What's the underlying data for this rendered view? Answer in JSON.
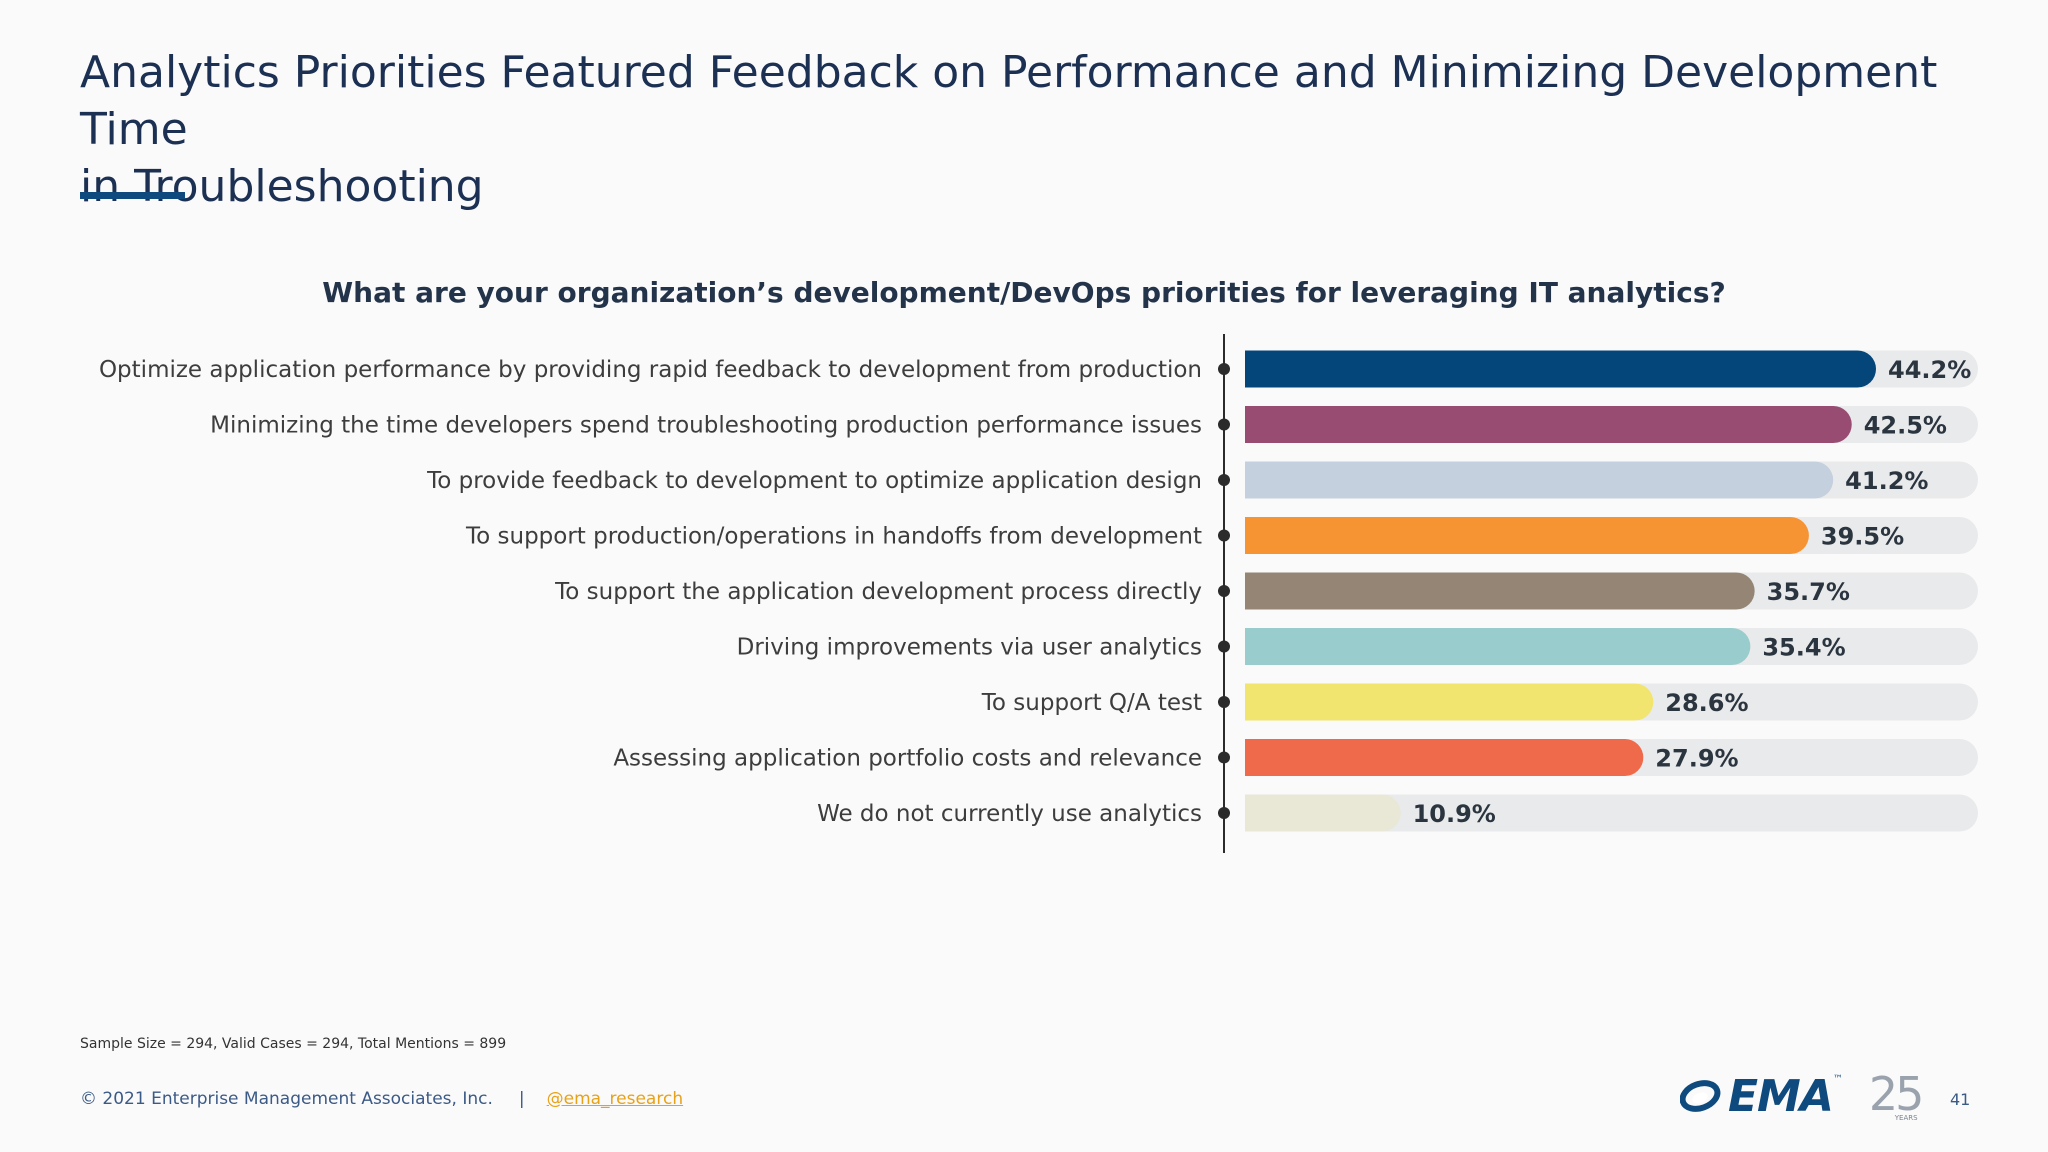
{
  "slide": {
    "title": "Analytics Priorities Featured Feedback on Performance and Minimizing Development Time\nin Troubleshooting",
    "footnote": "Sample Size = 294, Valid Cases = 294, Total Mentions = 899",
    "copyright": "© 2021 Enterprise Management Associates, Inc.",
    "separator": "|",
    "social_handle": "@ema_research",
    "page_number": "41",
    "logo": {
      "brand": "EMA",
      "trademark": "™",
      "anniversary_number": "25",
      "anniversary_word": "YEARS"
    }
  },
  "chart_data": {
    "type": "bar",
    "orientation": "horizontal",
    "title": "What are your organization’s development/DevOps priorities for leveraging IT analytics?",
    "xlabel": "",
    "ylabel": "",
    "xlim": [
      0,
      50
    ],
    "grid": false,
    "legend": "none",
    "categories": [
      "Optimize application performance by providing rapid feedback to development from production",
      "Minimizing the time developers spend troubleshooting production performance issues",
      "To provide feedback to development to optimize application design",
      "To support production/operations in handoffs from development",
      "To support the application development process directly",
      "Driving improvements via user analytics",
      "To support Q/A test",
      "Assessing application portfolio costs and relevance",
      "We do not currently use analytics"
    ],
    "values": [
      44.2,
      42.5,
      41.2,
      39.5,
      35.7,
      35.4,
      28.6,
      27.9,
      10.9
    ],
    "value_labels": [
      "44.2%",
      "42.5%",
      "41.2%",
      "39.5%",
      "35.7%",
      "35.4%",
      "28.6%",
      "27.9%",
      "10.9%"
    ],
    "colors": [
      "#04457a",
      "#984c72",
      "#c4d0de",
      "#f69434",
      "#948575",
      "#99cdcd",
      "#f1e46f",
      "#ef6a4a",
      "#e9e7d5"
    ],
    "track_color": "#e9eaeb",
    "axis_color": "#2b2b2b",
    "label_color": "#3d3d3d",
    "value_label_color": "#2b3540"
  }
}
